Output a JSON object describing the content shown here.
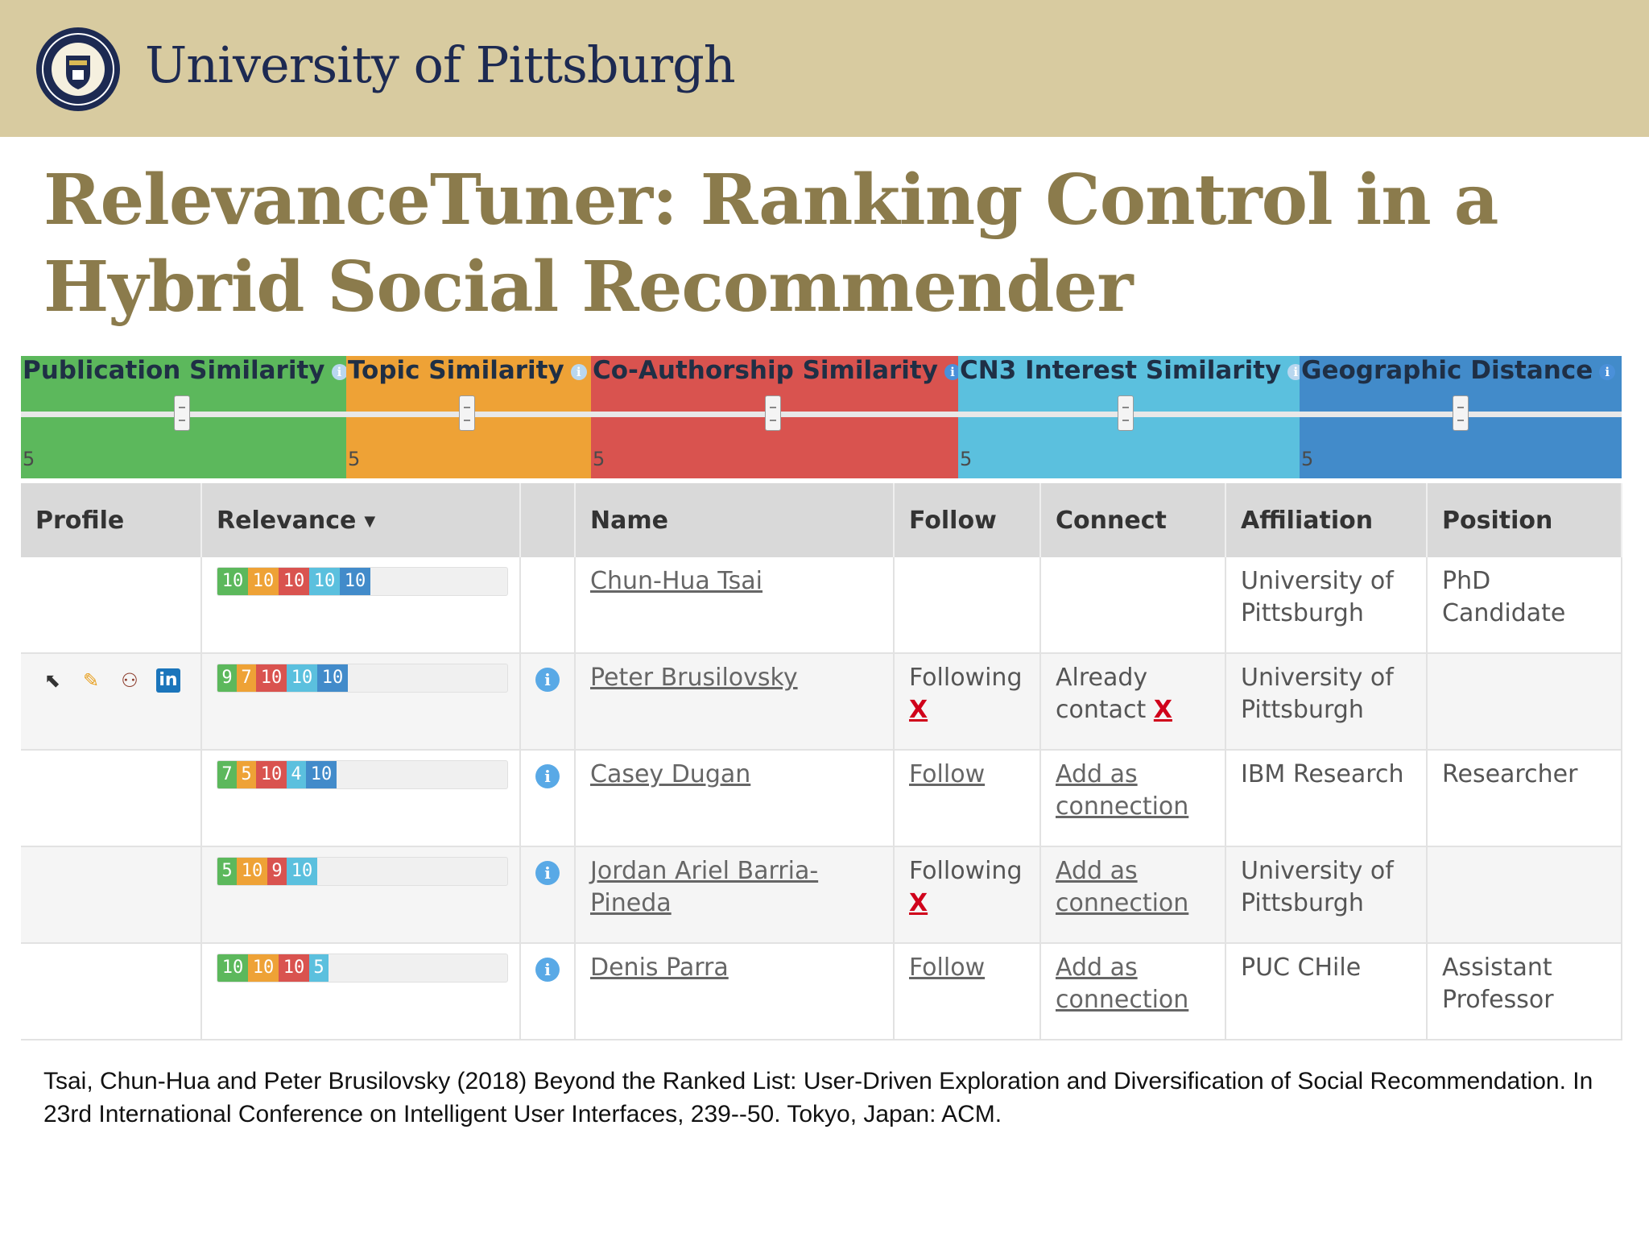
{
  "header": {
    "university": "University of Pittsburgh"
  },
  "slide": {
    "title_line1": "RelevanceTuner: Ranking Control in a",
    "title_line2": "Hybrid Social Recommender"
  },
  "colors": {
    "banner": "#d8cba0",
    "title": "#8b7b4c",
    "publication": "#5cb85c",
    "topic": "#eea236",
    "coauthorship": "#d9534f",
    "cn3": "#5bc0de",
    "geographic": "#428bca"
  },
  "sliders": [
    {
      "label": "Publication Similarity",
      "value": "5",
      "color": "#5cb85c",
      "info_icon": "info-icon"
    },
    {
      "label": "Topic Similarity",
      "value": "5",
      "color": "#eea236",
      "info_icon": "info-icon"
    },
    {
      "label": "Co-Authorship Similarity",
      "value": "5",
      "color": "#d9534f",
      "info_icon": "info-icon"
    },
    {
      "label": "CN3 Interest Similarity",
      "value": "5",
      "color": "#5bc0de",
      "info_icon": "info-icon"
    },
    {
      "label": "Geographic Distance",
      "value": "5",
      "color": "#428bca",
      "info_icon": "info-icon"
    }
  ],
  "table": {
    "headers": {
      "profile": "Profile",
      "relevance": "Relevance",
      "sort_icon": "▼",
      "name": "Name",
      "follow": "Follow",
      "connect": "Connect",
      "affiliation": "Affiliation",
      "position": "Position"
    },
    "rows": [
      {
        "relevance": [
          "10",
          "10",
          "10",
          "10",
          "10"
        ],
        "name": "Chun-Hua Tsai",
        "follow": "",
        "follow_x": "",
        "connect": "",
        "connect_x": "",
        "connect_is_link": false,
        "affiliation": "University of Pittsburgh",
        "position": "PhD Candidate",
        "has_info": false
      },
      {
        "relevance": [
          "9",
          "7",
          "10",
          "10",
          "10"
        ],
        "name": "Peter Brusilovsky",
        "follow": "Following",
        "follow_x": "X",
        "connect": "Already contact",
        "connect_x": "X",
        "connect_is_link": false,
        "affiliation": "University of Pittsburgh",
        "position": "",
        "has_info": true,
        "profile_icons": [
          "google-scholar-icon",
          "publications-icon",
          "coauthor-network-icon",
          "linkedin-icon"
        ]
      },
      {
        "relevance": [
          "7",
          "5",
          "10",
          "4",
          "10"
        ],
        "name": "Casey Dugan",
        "follow": "Follow",
        "follow_x": "",
        "connect": "Add as connection",
        "connect_x": "",
        "connect_is_link": true,
        "affiliation": "IBM Research",
        "position": "Researcher",
        "has_info": true
      },
      {
        "relevance": [
          "5",
          "10",
          "9",
          "10"
        ],
        "name": "Jordan Ariel Barria-Pineda",
        "follow": "Following",
        "follow_x": "X",
        "connect": "Add as connection",
        "connect_x": "",
        "connect_is_link": true,
        "affiliation": "University of Pittsburgh",
        "position": "",
        "has_info": true
      },
      {
        "relevance": [
          "10",
          "10",
          "10",
          "5"
        ],
        "name": "Denis Parra",
        "follow": "Follow",
        "follow_x": "",
        "connect": "Add as connection",
        "connect_x": "",
        "connect_is_link": true,
        "affiliation": "PUC CHile",
        "position": "Assistant Professor",
        "has_info": true
      }
    ]
  },
  "citation": "Tsai, Chun-Hua and Peter Brusilovsky (2018)  Beyond the Ranked List: User-Driven Exploration and Diversification of Social Recommendation. In 23rd International Conference on Intelligent User Interfaces, 239--50. Tokyo, Japan: ACM."
}
